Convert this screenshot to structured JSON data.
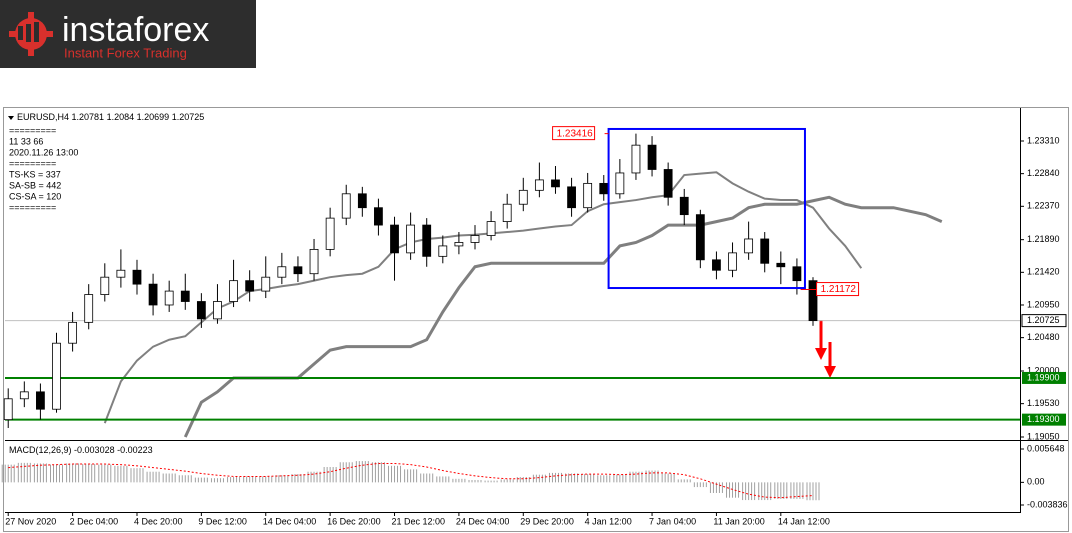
{
  "logo": {
    "name": "instaforex",
    "tagline": "Instant Forex Trading"
  },
  "chart_data": [
    {
      "type": "candlestick",
      "symbol": "EURUSD,H4",
      "header_values": [
        1.20781,
        1.2084,
        1.20699,
        1.20725
      ],
      "info_lines": [
        "=========",
        "11 33 66",
        "2020.11.26 13:00",
        "=========",
        "TS-KS = 337",
        "SA-SB = 442",
        "CS-SA = 120",
        "========="
      ],
      "x": [
        0,
        1,
        2,
        3,
        4,
        5,
        6,
        7,
        8,
        9,
        10,
        11,
        12,
        13,
        14,
        15,
        16,
        17,
        18,
        19,
        20,
        21,
        22,
        23,
        24,
        25,
        26,
        27,
        28,
        29,
        30,
        31,
        32,
        33,
        34,
        35,
        36,
        37,
        38,
        39,
        40,
        41,
        42,
        43,
        44,
        45,
        46,
        47,
        48,
        49,
        50,
        51,
        52,
        53,
        54,
        55,
        56,
        57,
        58
      ],
      "xlim": [
        -0.2,
        62.86
      ],
      "xticks": [
        {
          "value": 0,
          "label": "27 Nov 2020"
        },
        {
          "value": 4,
          "label": "2 Dec 04:00"
        },
        {
          "value": 8,
          "label": "4 Dec 20:00"
        },
        {
          "value": 12,
          "label": "9 Dec 12:00"
        },
        {
          "value": 16,
          "label": "14 Dec 04:00"
        },
        {
          "value": 20,
          "label": "16 Dec 20:00"
        },
        {
          "value": 24,
          "label": "21 Dec 12:00"
        },
        {
          "value": 28,
          "label": "24 Dec 04:00"
        },
        {
          "value": 32,
          "label": "29 Dec 20:00"
        },
        {
          "value": 36,
          "label": "4 Jan 12:00"
        },
        {
          "value": 40,
          "label": "7 Jan 04:00"
        },
        {
          "value": 44,
          "label": "11 Jan 20:00"
        },
        {
          "value": 48,
          "label": "14 Jan 12:00"
        }
      ],
      "open": [
        1.193,
        1.196,
        1.197,
        1.1945,
        1.204,
        1.207,
        1.211,
        1.2135,
        1.2145,
        1.2125,
        1.2095,
        1.2115,
        1.21,
        1.2075,
        1.21,
        1.213,
        1.2115,
        1.2135,
        1.215,
        1.214,
        1.2175,
        1.222,
        1.2255,
        1.2235,
        1.221,
        1.217,
        1.221,
        1.2165,
        1.218,
        1.2185,
        1.2195,
        1.2215,
        1.224,
        1.226,
        1.2275,
        1.2265,
        1.2235,
        1.227,
        1.2255,
        1.2285,
        1.2325,
        1.229,
        1.225,
        1.2225,
        1.216,
        1.2145,
        1.217,
        1.219,
        1.2155,
        1.215,
        1.213,
        null,
        null,
        null,
        null,
        null,
        null,
        null,
        null
      ],
      "high": [
        1.1975,
        1.1985,
        1.1982,
        1.2055,
        1.2085,
        1.2125,
        1.2155,
        1.2175,
        1.216,
        1.214,
        1.213,
        1.214,
        1.2112,
        1.2125,
        1.216,
        1.2145,
        1.2165,
        1.217,
        1.2165,
        1.219,
        1.2235,
        1.2268,
        1.2265,
        1.2248,
        1.2222,
        1.2228,
        1.222,
        1.2195,
        1.22,
        1.221,
        1.223,
        1.2255,
        1.2278,
        1.23,
        1.2295,
        1.2278,
        1.2285,
        1.2282,
        1.2305,
        1.23416,
        1.2338,
        1.23,
        1.2262,
        1.2232,
        1.2172,
        1.2185,
        1.2215,
        1.22,
        1.2172,
        1.2162,
        1.2135,
        null,
        null,
        null,
        null,
        null,
        null,
        null,
        null
      ],
      "low": [
        1.1918,
        1.1948,
        1.193,
        1.194,
        1.2028,
        1.206,
        1.21,
        1.212,
        1.211,
        1.208,
        1.2085,
        1.2088,
        1.2062,
        1.2068,
        1.2092,
        1.21,
        1.2105,
        1.2125,
        1.2128,
        1.213,
        1.2165,
        1.221,
        1.2222,
        1.2195,
        1.213,
        1.216,
        1.215,
        1.2155,
        1.2168,
        1.2175,
        1.2188,
        1.2205,
        1.223,
        1.225,
        1.2255,
        1.2222,
        1.2228,
        1.2245,
        1.2248,
        1.2275,
        1.228,
        1.2238,
        1.221,
        1.2148,
        1.2132,
        1.2135,
        1.216,
        1.2142,
        1.2125,
        1.211,
        1.2065,
        null,
        null,
        null,
        null,
        null,
        null,
        null,
        null
      ],
      "close": [
        1.196,
        1.197,
        1.1945,
        1.204,
        1.207,
        1.211,
        1.2135,
        1.2145,
        1.2125,
        1.2095,
        1.2115,
        1.21,
        1.2075,
        1.21,
        1.213,
        1.2115,
        1.2135,
        1.215,
        1.214,
        1.2175,
        1.222,
        1.2255,
        1.2235,
        1.221,
        1.217,
        1.221,
        1.2165,
        1.218,
        1.2185,
        1.2195,
        1.2215,
        1.224,
        1.226,
        1.2275,
        1.2265,
        1.2235,
        1.227,
        1.2255,
        1.2285,
        1.2325,
        1.229,
        1.225,
        1.2225,
        1.216,
        1.2145,
        1.217,
        1.219,
        1.2155,
        1.215,
        1.213,
        1.20725,
        null,
        null,
        null,
        null,
        null,
        null,
        null,
        null
      ],
      "up_color": "#ffffff",
      "down_color": "#000000",
      "series": [
        {
          "color": "#7f7f7f",
          "width": 3,
          "values": [
            null,
            null,
            null,
            null,
            null,
            null,
            null,
            null,
            null,
            null,
            null,
            1.1905,
            1.1955,
            1.197,
            1.199,
            1.199,
            1.199,
            1.199,
            1.199,
            1.201,
            1.203,
            1.2035,
            1.2035,
            1.2035,
            1.2035,
            1.2035,
            1.2045,
            1.2085,
            1.212,
            1.215,
            1.2155,
            1.2155,
            1.2155,
            1.2155,
            1.2155,
            1.2155,
            1.2155,
            1.2155,
            1.218,
            1.2185,
            1.2195,
            1.221,
            1.221,
            1.221,
            1.2215,
            1.222,
            1.2235,
            1.224,
            1.224,
            1.224,
            1.2245,
            1.225,
            1.224,
            1.2235,
            1.2235,
            1.2235,
            1.223,
            1.2225,
            1.2215
          ]
        },
        {
          "color": "#808080",
          "width": 2,
          "values": [
            null,
            null,
            null,
            null,
            null,
            null,
            1.1925,
            1.1985,
            1.2015,
            1.2035,
            1.2045,
            1.205,
            1.207,
            1.209,
            1.21,
            1.2115,
            1.2118,
            1.2122,
            1.2125,
            1.213,
            1.2135,
            1.2138,
            1.214,
            1.215,
            1.2175,
            1.2185,
            1.219,
            1.2192,
            1.2195,
            1.2196,
            1.2198,
            1.22,
            1.2202,
            1.2205,
            1.2208,
            1.221,
            1.223,
            1.224,
            1.2243,
            1.2246,
            1.225,
            1.2253,
            1.2282,
            1.2284,
            1.2286,
            1.227,
            1.2258,
            1.2248,
            1.2246,
            1.2246,
            1.2235,
            1.2205,
            1.218,
            1.2148,
            null,
            null,
            null,
            null,
            null
          ]
        }
      ],
      "ylim": [
        1.19007,
        1.23756
      ],
      "yticks": [
        {
          "value": 1.2331,
          "label": "1.23310"
        },
        {
          "value": 1.2284,
          "label": "1.22840"
        },
        {
          "value": 1.2237,
          "label": "1.22370"
        },
        {
          "value": 1.2189,
          "label": "1.21890"
        },
        {
          "value": 1.2142,
          "label": "1.21420"
        },
        {
          "value": 1.2095,
          "label": "1.20950"
        },
        {
          "value": 1.2048,
          "label": "1.20480"
        },
        {
          "value": 1.2,
          "label": "1.20000"
        },
        {
          "value": 1.1953,
          "label": "1.19530"
        },
        {
          "value": 1.1905,
          "label": "1.19050"
        }
      ],
      "levels": [
        {
          "value": 1.199,
          "label": "1.19900"
        },
        {
          "value": 1.193,
          "label": "1.19300"
        }
      ],
      "level_color": "#008000",
      "current_price": 1.20725,
      "box": {
        "x": [
          37.3,
          49.5
        ],
        "y": [
          1.21194,
          1.23483
        ],
        "color": "#0000ff"
      },
      "annotations": [
        {
          "x": 37.3,
          "value": 1.23416
        },
        {
          "x": 49.6,
          "value": 1.21172
        }
      ],
      "annotation_color": "#ff0000"
    },
    {
      "type": "macd",
      "title": "MACD(12,26,9)",
      "title_values": [
        -0.003028,
        -0.00223
      ],
      "x": [
        0,
        1,
        2,
        3,
        4,
        5,
        6,
        7,
        8,
        9,
        10,
        11,
        12,
        13,
        14,
        15,
        16,
        17,
        18,
        19,
        20,
        21,
        22,
        23,
        24,
        25,
        26,
        27,
        28,
        29,
        30,
        31,
        32,
        33,
        34,
        35,
        36,
        37,
        38,
        39,
        40,
        41,
        42,
        43,
        44,
        45,
        46,
        47,
        48,
        49,
        50
      ],
      "xlim": [
        -0.2,
        62.86
      ],
      "values": [
        0.003,
        0.0033,
        0.0032,
        0.003,
        0.0032,
        0.0031,
        0.003,
        0.0028,
        0.0024,
        0.0018,
        0.0015,
        0.0012,
        0.0008,
        0.0007,
        0.0009,
        0.001,
        0.001,
        0.0012,
        0.0014,
        0.0018,
        0.0026,
        0.0034,
        0.0036,
        0.0034,
        0.0028,
        0.0022,
        0.0015,
        0.001,
        0.0006,
        0.0004,
        0.0003,
        0.0005,
        0.0009,
        0.0013,
        0.0016,
        0.0015,
        0.0014,
        0.0012,
        0.0013,
        0.0018,
        0.002,
        0.0015,
        0.0005,
        -0.0008,
        -0.0018,
        -0.0026,
        -0.003,
        -0.003,
        -0.0028,
        -0.0028,
        -0.003028
      ],
      "signal": [
        0.0025,
        0.0027,
        0.0029,
        0.003,
        0.0031,
        0.0031,
        0.0031,
        0.003,
        0.0028,
        0.0025,
        0.0022,
        0.0019,
        0.0015,
        0.0012,
        0.001,
        0.001,
        0.001,
        0.0011,
        0.0012,
        0.0014,
        0.0018,
        0.0024,
        0.0029,
        0.0032,
        0.0032,
        0.003,
        0.0026,
        0.002,
        0.0015,
        0.0011,
        0.0008,
        0.0006,
        0.0006,
        0.0008,
        0.0011,
        0.0013,
        0.0014,
        0.0014,
        0.0013,
        0.0014,
        0.0016,
        0.0016,
        0.0013,
        0.0006,
        -0.0003,
        -0.0012,
        -0.002,
        -0.0025,
        -0.0026,
        -0.0024,
        -0.00223
      ],
      "color": "#a0a0a0",
      "signal_color": "#ff0000",
      "ylim": [
        -0.005021,
        0.006664
      ],
      "yticks": [
        0.005648,
        {
          "value": 0,
          "label": "0.00"
        },
        -0.003836
      ]
    }
  ]
}
